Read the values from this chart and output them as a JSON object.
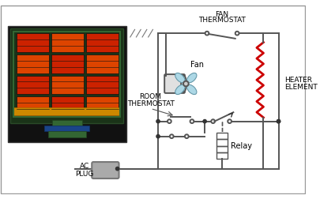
{
  "bg_color": "#ffffff",
  "line_color": "#555555",
  "heater_color": "#cc0000",
  "fan_color": "#add8e6",
  "text_color": "#000000",
  "labels": {
    "fan_thermostat": "FAN\nTHERMOSTAT",
    "heater_element": "HEATER\nELEMENT",
    "fan": "Fan",
    "room_thermostat": "ROOM\nTHERMOSTAT",
    "relay": "Relay",
    "ac_plug": "AC\nPLUG"
  }
}
